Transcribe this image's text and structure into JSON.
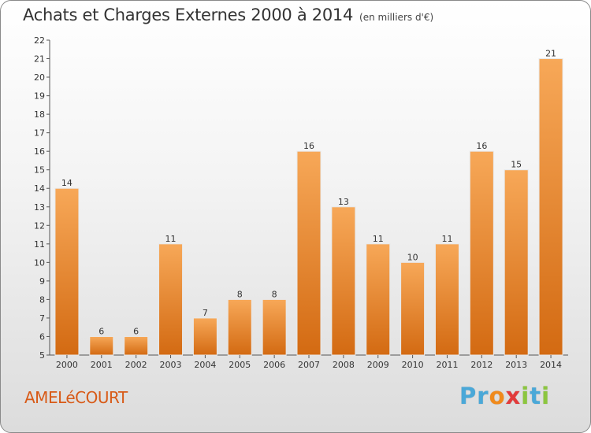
{
  "title": "Achats et Charges Externes 2000 à 2014",
  "subtitle": "(en milliers d'€)",
  "commune": "AMELéCOURT",
  "brand": "Proxiti",
  "brand_letters": [
    {
      "ch": "P",
      "color": "#4aa8d8"
    },
    {
      "ch": "r",
      "color": "#4aa8d8"
    },
    {
      "ch": "o",
      "color": "#f08a1c"
    },
    {
      "ch": "x",
      "color": "#e23b3b"
    },
    {
      "ch": "i",
      "color": "#8cc63f"
    },
    {
      "ch": "t",
      "color": "#4aa8d8"
    },
    {
      "ch": "i",
      "color": "#8cc63f"
    }
  ],
  "colors": {
    "bar_light": "#f7a858",
    "bar_dark": "#d36a12",
    "commune": "#d85a17"
  },
  "chart_data": {
    "type": "bar",
    "categories": [
      "2000",
      "2001",
      "2002",
      "2003",
      "2004",
      "2005",
      "2006",
      "2007",
      "2008",
      "2009",
      "2010",
      "2011",
      "2012",
      "2013",
      "2014"
    ],
    "values": [
      14,
      6,
      6,
      11,
      7,
      8,
      8,
      16,
      13,
      11,
      10,
      11,
      16,
      15,
      21
    ],
    "title": "Achats et Charges Externes 2000 à 2014",
    "subtitle": "(en milliers d'€)",
    "ylim": [
      5,
      22
    ],
    "yticks": [
      5,
      6,
      7,
      8,
      9,
      10,
      11,
      12,
      13,
      14,
      15,
      16,
      17,
      18,
      19,
      20,
      21,
      22
    ],
    "grid": false,
    "data_labels": true
  }
}
